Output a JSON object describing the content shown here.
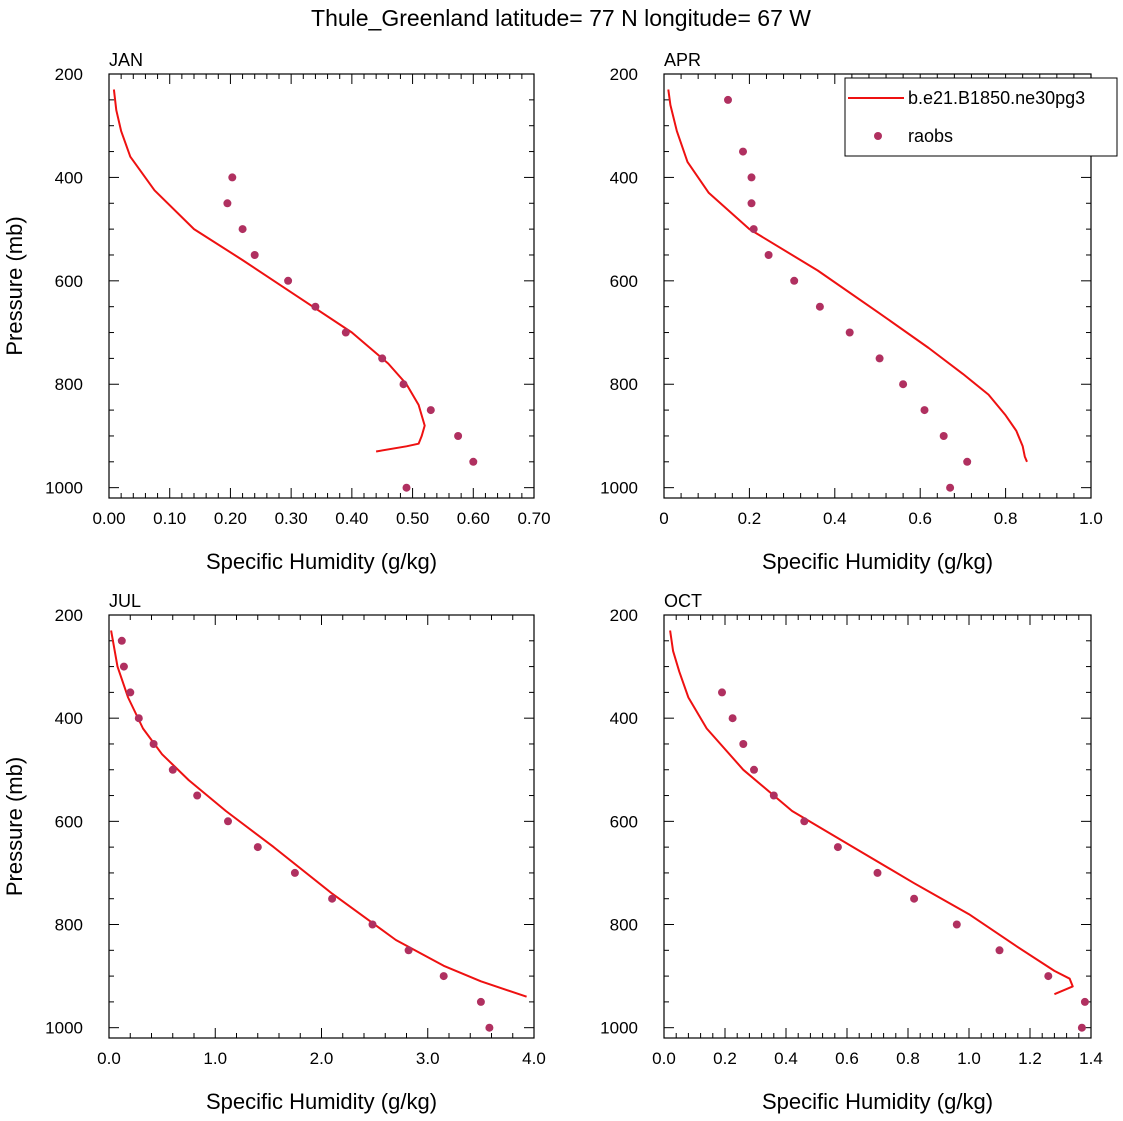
{
  "figure_title": "Thule_Greenland  latitude= 77 N longitude= 67 W",
  "colors": {
    "model": "#ee1111",
    "obs": "#b03060",
    "axis": "#000000"
  },
  "legend": {
    "entries": [
      "b.e21.B1850.ne30pg3",
      "raobs"
    ]
  },
  "chart_data": [
    {
      "type": "line",
      "title": "JAN",
      "xlabel": "Specific Humidity (g/kg)",
      "ylabel": "Pressure (mb)",
      "xlim": [
        0,
        0.7
      ],
      "ylim": [
        200,
        1020
      ],
      "xticks": [
        "0.00",
        "0.10",
        "0.20",
        "0.30",
        "0.40",
        "0.50",
        "0.60",
        "0.70"
      ],
      "xtick_values": [
        0,
        0.1,
        0.2,
        0.3,
        0.4,
        0.5,
        0.6,
        0.7
      ],
      "yticks": [
        "200",
        "400",
        "600",
        "800",
        "1000"
      ],
      "ytick_values": [
        200,
        400,
        600,
        800,
        1000
      ],
      "series": [
        {
          "name": "b.e21.B1850.ne30pg3",
          "kind": "line",
          "x": [
            0.008,
            0.012,
            0.02,
            0.035,
            0.075,
            0.14,
            0.22,
            0.31,
            0.4,
            0.46,
            0.49,
            0.51,
            0.52,
            0.515,
            0.51,
            0.49,
            0.44
          ],
          "y": [
            230,
            270,
            310,
            360,
            425,
            500,
            560,
            630,
            700,
            760,
            800,
            840,
            880,
            900,
            915,
            920,
            930
          ]
        },
        {
          "name": "raobs",
          "kind": "scatter",
          "x": [
            0.203,
            0.195,
            0.22,
            0.24,
            0.295,
            0.34,
            0.39,
            0.45,
            0.485,
            0.53,
            0.575,
            0.6,
            0.49
          ],
          "y": [
            400,
            450,
            500,
            550,
            600,
            650,
            700,
            750,
            800,
            850,
            900,
            950,
            1000
          ]
        }
      ]
    },
    {
      "type": "line",
      "title": "APR",
      "xlabel": "Specific Humidity (g/kg)",
      "ylabel": "",
      "xlim": [
        0,
        1.0
      ],
      "ylim": [
        200,
        1020
      ],
      "xticks": [
        "0",
        "0.2",
        "0.4",
        "0.6",
        "0.8",
        "1.0"
      ],
      "xtick_values": [
        0,
        0.2,
        0.4,
        0.6,
        0.8,
        1.0
      ],
      "yticks": [
        "200",
        "400",
        "600",
        "800",
        "1000"
      ],
      "ytick_values": [
        200,
        400,
        600,
        800,
        1000
      ],
      "series": [
        {
          "name": "b.e21.B1850.ne30pg3",
          "kind": "line",
          "x": [
            0.01,
            0.015,
            0.03,
            0.055,
            0.105,
            0.2,
            0.36,
            0.5,
            0.62,
            0.7,
            0.76,
            0.8,
            0.825,
            0.84,
            0.845,
            0.85
          ],
          "y": [
            230,
            260,
            310,
            370,
            430,
            500,
            580,
            660,
            730,
            780,
            820,
            860,
            890,
            920,
            940,
            950
          ]
        },
        {
          "name": "raobs",
          "kind": "scatter",
          "x": [
            0.15,
            0.185,
            0.205,
            0.205,
            0.21,
            0.245,
            0.305,
            0.365,
            0.435,
            0.505,
            0.56,
            0.61,
            0.655,
            0.71,
            0.67
          ],
          "y": [
            250,
            350,
            400,
            450,
            500,
            550,
            600,
            650,
            700,
            750,
            800,
            850,
            900,
            950,
            1000
          ]
        }
      ]
    },
    {
      "type": "line",
      "title": "JUL",
      "xlabel": "Specific Humidity (g/kg)",
      "ylabel": "Pressure (mb)",
      "xlim": [
        0,
        4.0
      ],
      "ylim": [
        200,
        1020
      ],
      "xticks": [
        "0.0",
        "1.0",
        "2.0",
        "3.0",
        "4.0"
      ],
      "xtick_values": [
        0,
        1,
        2,
        3,
        4
      ],
      "yticks": [
        "200",
        "400",
        "600",
        "800",
        "1000"
      ],
      "ytick_values": [
        200,
        400,
        600,
        800,
        1000
      ],
      "series": [
        {
          "name": "b.e21.B1850.ne30pg3",
          "kind": "line",
          "x": [
            0.02,
            0.08,
            0.18,
            0.32,
            0.5,
            0.75,
            1.1,
            1.55,
            2.1,
            2.7,
            3.15,
            3.5,
            3.93
          ],
          "y": [
            230,
            300,
            360,
            420,
            470,
            520,
            580,
            650,
            740,
            830,
            880,
            910,
            940
          ]
        },
        {
          "name": "raobs",
          "kind": "scatter",
          "x": [
            0.12,
            0.14,
            0.2,
            0.28,
            0.42,
            0.6,
            0.83,
            1.12,
            1.4,
            1.75,
            2.1,
            2.48,
            2.82,
            3.15,
            3.5,
            3.58
          ],
          "y": [
            250,
            300,
            350,
            400,
            450,
            500,
            550,
            600,
            650,
            700,
            750,
            800,
            850,
            900,
            950,
            1000
          ]
        }
      ]
    },
    {
      "type": "line",
      "title": "OCT",
      "xlabel": "Specific Humidity (g/kg)",
      "ylabel": "",
      "xlim": [
        0,
        1.4
      ],
      "ylim": [
        200,
        1020
      ],
      "xticks": [
        "0.0",
        "0.2",
        "0.4",
        "0.6",
        "0.8",
        "1.0",
        "1.2",
        "1.4"
      ],
      "xtick_values": [
        0,
        0.2,
        0.4,
        0.6,
        0.8,
        1.0,
        1.2,
        1.4
      ],
      "yticks": [
        "200",
        "400",
        "600",
        "800",
        "1000"
      ],
      "ytick_values": [
        200,
        400,
        600,
        800,
        1000
      ],
      "series": [
        {
          "name": "b.e21.B1850.ne30pg3",
          "kind": "line",
          "x": [
            0.02,
            0.03,
            0.05,
            0.08,
            0.14,
            0.26,
            0.42,
            0.62,
            0.82,
            1.0,
            1.15,
            1.28,
            1.33,
            1.34,
            1.28
          ],
          "y": [
            230,
            270,
            310,
            360,
            420,
            500,
            580,
            650,
            720,
            780,
            840,
            890,
            905,
            920,
            935
          ]
        },
        {
          "name": "raobs",
          "kind": "scatter",
          "x": [
            0.19,
            0.225,
            0.26,
            0.295,
            0.36,
            0.46,
            0.57,
            0.7,
            0.82,
            0.96,
            1.1,
            1.26,
            1.38,
            1.37
          ],
          "y": [
            350,
            400,
            450,
            500,
            550,
            600,
            650,
            700,
            750,
            800,
            850,
            900,
            950,
            1000
          ]
        }
      ]
    }
  ]
}
